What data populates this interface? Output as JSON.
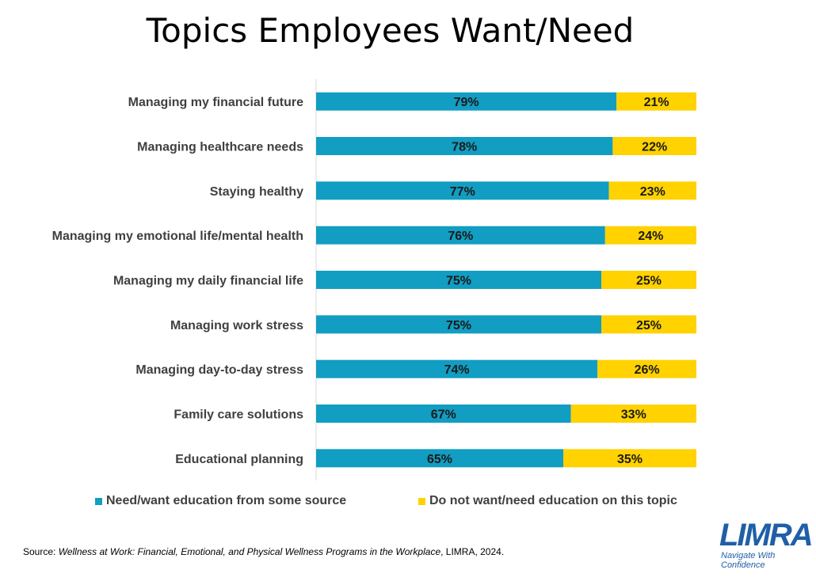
{
  "title": "Topics Employees Want/Need",
  "chart_data": {
    "type": "bar",
    "orientation": "horizontal",
    "stacked": true,
    "percent_stacked": true,
    "categories": [
      "Managing my financial future",
      "Managing healthcare needs",
      "Staying healthy",
      "Managing my emotional life/mental health",
      "Managing my daily financial life",
      "Managing work stress",
      "Managing day-to-day stress",
      "Family care solutions",
      "Educational planning"
    ],
    "series": [
      {
        "name": "Need/want education from some source",
        "values": [
          79,
          78,
          77,
          76,
          75,
          75,
          74,
          67,
          65
        ],
        "color": "#129dc2"
      },
      {
        "name": "Do not want/need education on this topic",
        "values": [
          21,
          22,
          23,
          24,
          25,
          25,
          26,
          33,
          35
        ],
        "color": "#ffd200"
      }
    ],
    "value_suffix": "%",
    "xlim": [
      0,
      100
    ],
    "grid": false,
    "legend_position": "bottom"
  },
  "source": {
    "prefix": "Source: ",
    "italic": "Wellness at Work: Financial, Emotional, and Physical Wellness Programs in the Workplace",
    "suffix": ", LIMRA, 2024."
  },
  "logo": {
    "word": "LIMRA",
    "tagline_line1": "Navigate With",
    "tagline_line2": "Confidence"
  }
}
